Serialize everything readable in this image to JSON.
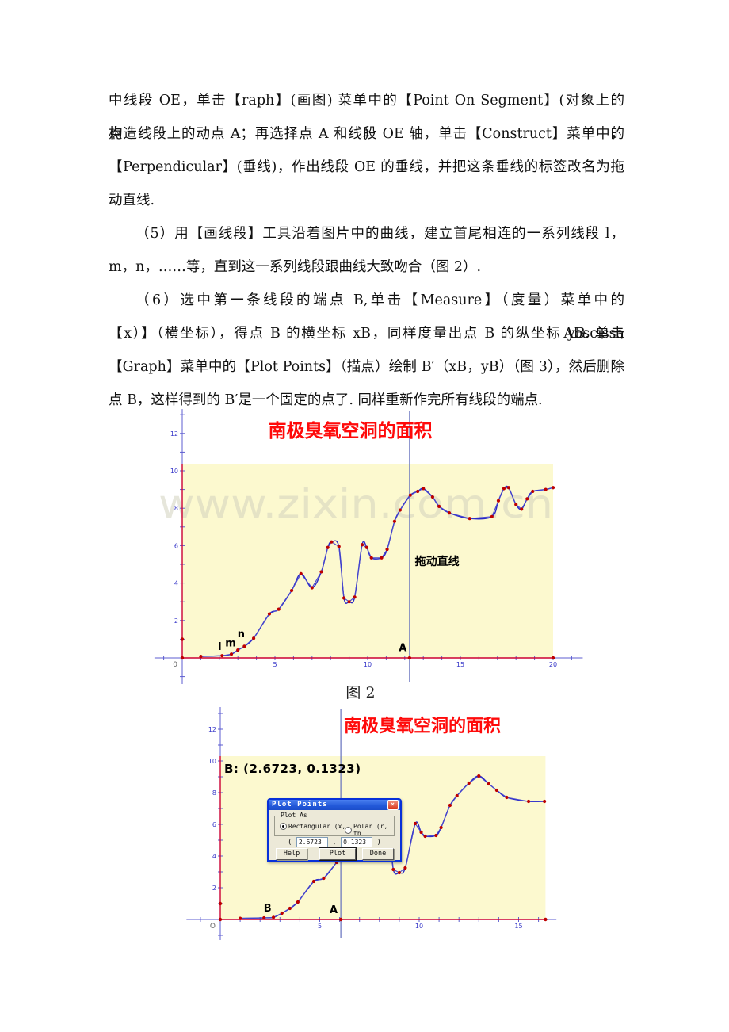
{
  "document": {
    "lines": [
      "中线段 OE，单击【raph】(画图) 菜单中的【Point On Segment】(对象上的点)，",
      "构造线段上的动点 A；再选择点 A 和线段 OE 轴，单击【Construct】菜单中的",
      "【Perpendicular】(垂线)，作出线段 OE 的垂线，并把这条垂线的标签改名为拖",
      "动直线.",
      "（5）用【画线段】工具沿着图片中的曲线，建立首尾相连的一系列线段 l，",
      "m，n，……等，直到这一系列线段跟曲线大致吻合（图 2）.",
      "（6）选中第一条线段的端点 B,单击【Measure】（度量）菜单中的【Abscissa",
      "（x）】（横坐标），得点 B 的横坐标 xB，同样度量出点 B 的纵坐标 yB. 单击",
      "【Graph】菜单中的【Plot Points】（描点）绘制 B′（xB，yB）（图 3），然后删除",
      "点 B，这样得到的 B′是一个固定的点了. 同样重新作完所有线段的端点."
    ],
    "caption": "图 2"
  },
  "chart_data": [
    {
      "type": "line",
      "title": "南极臭氧空洞的面积",
      "watermark": "www.zixin.com.cn",
      "origin_label": "0",
      "x_axis_labels": [
        5,
        10,
        15,
        20
      ],
      "y_axis_labels": [
        2,
        4,
        6,
        8,
        10,
        12
      ],
      "x_range": [
        -1.5,
        21.6
      ],
      "y_range": [
        -1.4,
        13.3
      ],
      "region": {
        "x0": 0,
        "x1": 20,
        "y0": 0,
        "y1": 10.35
      },
      "segment_on_x": {
        "from": 0,
        "to": 20
      },
      "segment_on_y": {
        "from": 0,
        "to": 10.35
      },
      "unit_point": [
        0,
        1
      ],
      "drag_line": {
        "x": 12.26,
        "label": "拖动直线"
      },
      "text_labels": [
        {
          "text": "l",
          "x": 1.93,
          "y": 0.42,
          "size": 13
        },
        {
          "text": "m",
          "x": 2.32,
          "y": 0.62,
          "size": 13
        },
        {
          "text": "n",
          "x": 2.98,
          "y": 1.1,
          "size": 13
        },
        {
          "text": "A",
          "x": 11.68,
          "y": 0.35,
          "size": 13
        },
        {
          "text": "拖动直线",
          "x": 12.55,
          "y": 4.95,
          "size": 14
        }
      ],
      "points": [
        [
          1,
          0.08
        ],
        [
          2.15,
          0.12
        ],
        [
          2.65,
          0.2
        ],
        [
          3.0,
          0.42
        ],
        [
          3.35,
          0.62
        ],
        [
          3.85,
          1.05
        ],
        [
          4.7,
          2.35
        ],
        [
          5.2,
          2.6
        ],
        [
          5.9,
          3.6
        ],
        [
          6.4,
          4.5
        ],
        [
          7.0,
          3.75
        ],
        [
          7.5,
          4.6
        ],
        [
          7.85,
          5.9
        ],
        [
          8.05,
          6.2
        ],
        [
          8.45,
          5.95
        ],
        [
          8.72,
          3.2
        ],
        [
          9.0,
          3.0
        ],
        [
          9.3,
          3.25
        ],
        [
          9.7,
          6.05
        ],
        [
          9.95,
          5.9
        ],
        [
          10.2,
          5.35
        ],
        [
          10.75,
          5.35
        ],
        [
          11.05,
          5.8
        ],
        [
          11.45,
          7.3
        ],
        [
          11.75,
          7.9
        ],
        [
          12.3,
          8.7
        ],
        [
          12.7,
          8.9
        ],
        [
          13.0,
          9.05
        ],
        [
          13.5,
          8.6
        ],
        [
          13.85,
          8.1
        ],
        [
          14.4,
          7.75
        ],
        [
          15.5,
          7.45
        ],
        [
          16.7,
          7.55
        ],
        [
          17.05,
          8.4
        ],
        [
          17.35,
          9.05
        ],
        [
          17.6,
          9.1
        ],
        [
          18.0,
          8.2
        ],
        [
          18.3,
          7.95
        ],
        [
          18.6,
          8.5
        ],
        [
          18.9,
          8.9
        ],
        [
          19.6,
          9.0
        ],
        [
          20.0,
          9.1
        ]
      ]
    },
    {
      "type": "line",
      "title": "南极臭氧空洞的面积",
      "annotation": "B: (2.6723, 0.1323)",
      "origin_label": "O",
      "x_axis_labels": [
        5,
        10,
        15
      ],
      "y_axis_labels": [
        2,
        4,
        6,
        8,
        10,
        12
      ],
      "x_range": [
        -1.7,
        16.9
      ],
      "y_range": [
        -1.3,
        13.4
      ],
      "region": {
        "x0": 0,
        "x1": 16.35,
        "y0": 0,
        "y1": 10.3
      },
      "segment_on_x": {
        "from": 0,
        "to": 16.35
      },
      "segment_on_y": {
        "from": 0,
        "to": 10.3
      },
      "unit_point": [
        0,
        1
      ],
      "drag_line": {
        "x": 6.06,
        "label": ""
      },
      "text_labels": [
        {
          "text": "B",
          "x": 2.18,
          "y": 0.5,
          "size": 13
        },
        {
          "text": "A",
          "x": 5.5,
          "y": 0.4,
          "size": 13
        }
      ],
      "points": [
        [
          1,
          0.07
        ],
        [
          2.2,
          0.1
        ],
        [
          2.672,
          0.132
        ],
        [
          3.1,
          0.4
        ],
        [
          3.5,
          0.7
        ],
        [
          3.9,
          1.1
        ],
        [
          4.7,
          2.4
        ],
        [
          5.2,
          2.6
        ],
        [
          5.85,
          3.6
        ],
        [
          6.4,
          4.5
        ],
        [
          6.75,
          3.8
        ],
        [
          7.5,
          4.6
        ],
        [
          7.85,
          5.9
        ],
        [
          8.05,
          6.2
        ],
        [
          8.45,
          5.95
        ],
        [
          8.7,
          3.15
        ],
        [
          9.0,
          2.95
        ],
        [
          9.3,
          3.25
        ],
        [
          9.8,
          6.05
        ],
        [
          10.1,
          5.5
        ],
        [
          10.3,
          5.25
        ],
        [
          10.85,
          5.3
        ],
        [
          11.1,
          5.8
        ],
        [
          11.55,
          7.2
        ],
        [
          11.9,
          7.8
        ],
        [
          12.5,
          8.6
        ],
        [
          13.0,
          9.05
        ],
        [
          13.5,
          8.55
        ],
        [
          13.9,
          8.15
        ],
        [
          14.4,
          7.7
        ],
        [
          15.5,
          7.45
        ],
        [
          16.3,
          7.45
        ]
      ]
    }
  ],
  "dialog": {
    "title": "Plot Points",
    "close_glyph": "×",
    "group_label": "Plot As",
    "radio_rectangular": "Rectangular (x,",
    "radio_polar": "Polar (r, th",
    "paren_open": "(",
    "comma": ",",
    "paren_close": ")",
    "x_value": "2.6723",
    "y_value": "0.1323",
    "help_label": "Help",
    "plot_label": "Plot",
    "done_label": "Done"
  },
  "colors": {
    "title_red": "#FF0A0A",
    "axis_blue": "#5C5CD0",
    "tick_label_blue": "#3535C8",
    "curve_blue": "#2828C8",
    "chain_blue": "#4848CF",
    "point_red": "#BE0000",
    "segment_red": "#CC0033",
    "region_yellow": "#FCF9CF",
    "watermark_gray": "#D2D2BE",
    "drag_blue": "#6470BE",
    "origin_gray": "#666666",
    "dialog_body": "#ECE9D8",
    "dialog_title_blue": "#2258D8",
    "close_red": "#D8361C"
  }
}
